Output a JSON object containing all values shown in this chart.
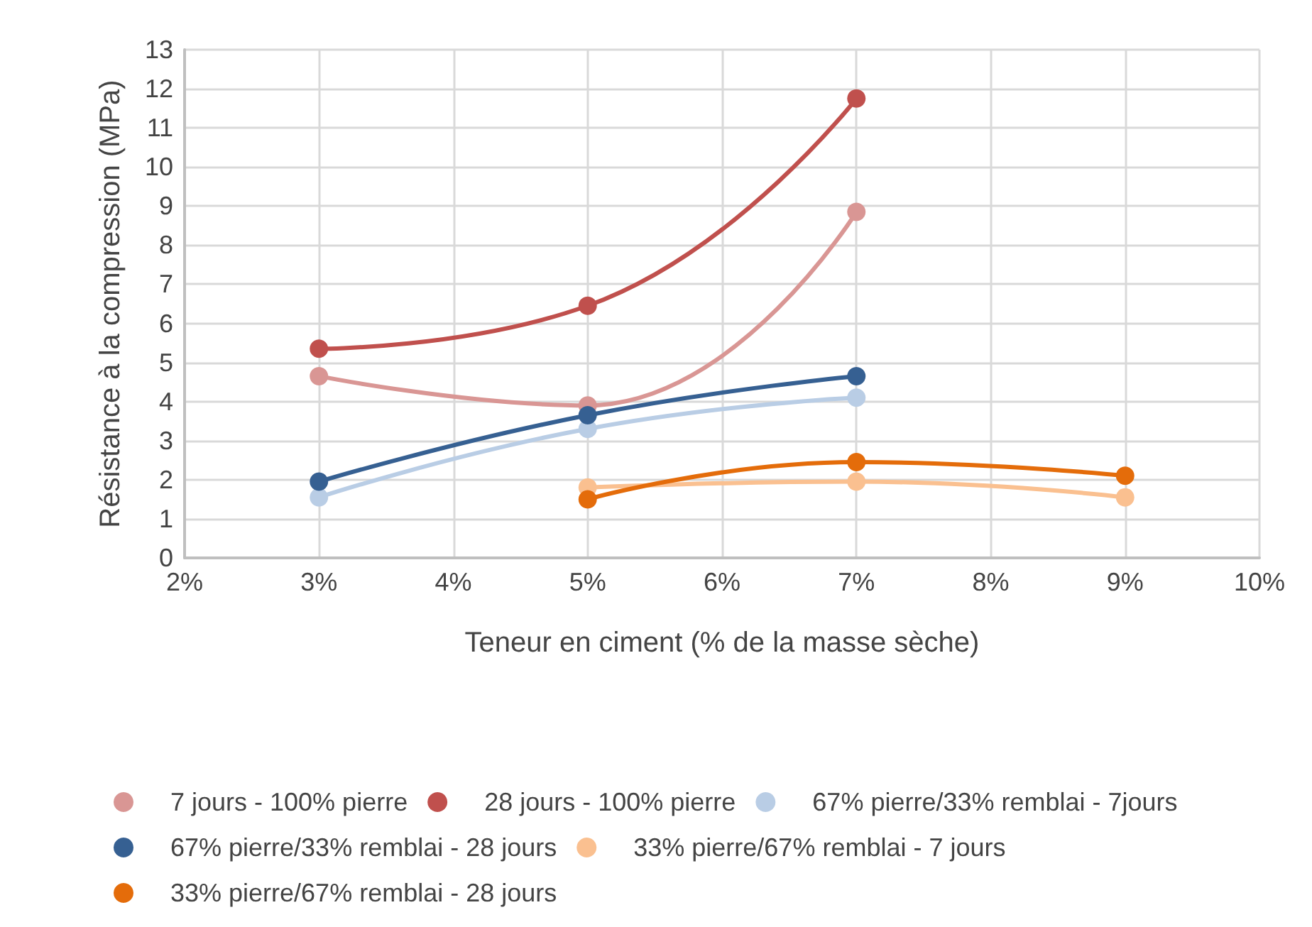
{
  "chart_data": {
    "type": "line",
    "xlabel": "Teneur en ciment (% de la masse sèche)",
    "ylabel": "Résistance à la compression (MPa)",
    "xlim": [
      2,
      10
    ],
    "xticks": [
      {
        "value": 2,
        "label": "2%"
      },
      {
        "value": 3,
        "label": "3%"
      },
      {
        "value": 4,
        "label": "4%"
      },
      {
        "value": 5,
        "label": "5%"
      },
      {
        "value": 6,
        "label": "6%"
      },
      {
        "value": 7,
        "label": "7%"
      },
      {
        "value": 8,
        "label": "8%"
      },
      {
        "value": 9,
        "label": "9%"
      },
      {
        "value": 10,
        "label": "10%"
      }
    ],
    "ylim": [
      0,
      13
    ],
    "yticks": [
      0,
      1,
      2,
      3,
      4,
      5,
      6,
      7,
      8,
      9,
      10,
      11,
      12,
      13
    ],
    "grid": true,
    "legend": "bottom",
    "marker": "circle",
    "line_style": "solid",
    "series": [
      {
        "name": "7 jours - 100% pierre",
        "color": "#d99694",
        "x": [
          3,
          5,
          7
        ],
        "values": [
          4.65,
          3.9,
          8.85
        ]
      },
      {
        "name": "28 jours - 100% pierre",
        "color": "#c0504d",
        "x": [
          3,
          5,
          7
        ],
        "values": [
          5.35,
          6.45,
          11.75
        ]
      },
      {
        "name": "67% pierre/33% remblai - 7jours",
        "color": "#b9cde5",
        "x": [
          3,
          5,
          7
        ],
        "values": [
          1.55,
          3.3,
          4.1
        ]
      },
      {
        "name": "67% pierre/33% remblai - 28 jours",
        "color": "#366092",
        "x": [
          3,
          5,
          7
        ],
        "values": [
          1.95,
          3.65,
          4.65
        ]
      },
      {
        "name": "33% pierre/67% remblai - 7 jours",
        "color": "#fac090",
        "x": [
          5,
          7,
          9
        ],
        "values": [
          1.8,
          1.95,
          1.55
        ]
      },
      {
        "name": "33% pierre/67% remblai - 28 jours",
        "color": "#e46c0a",
        "x": [
          5,
          7,
          9
        ],
        "values": [
          1.5,
          2.45,
          2.1
        ]
      }
    ]
  }
}
